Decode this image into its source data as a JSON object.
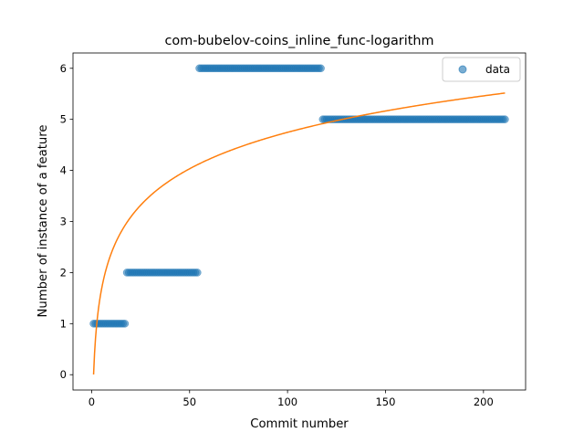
{
  "chart_data": {
    "type": "scatter",
    "title": "com-bubelov-coins_inline_func-logarithm",
    "xlabel": "Commit number",
    "ylabel": "Number of instance of a feature",
    "xlim": [
      -9.5,
      221.5
    ],
    "ylim": [
      -0.3,
      6.3
    ],
    "xticks": [
      0,
      50,
      100,
      150,
      200
    ],
    "yticks": [
      0,
      1,
      2,
      3,
      4,
      5,
      6
    ],
    "grid": false,
    "legend_position": "top-right",
    "series": [
      {
        "name": "data",
        "kind": "scatter",
        "color": "#1f77b4",
        "segments": [
          {
            "x_start": 1,
            "x_end": 17,
            "y": 1
          },
          {
            "x_start": 18,
            "x_end": 54,
            "y": 2
          },
          {
            "x_start": 55,
            "x_end": 117,
            "y": 6
          },
          {
            "x_start": 118,
            "x_end": 211,
            "y": 5
          }
        ]
      },
      {
        "name": "",
        "kind": "line",
        "color": "#ff7f0e",
        "function": "logarithm",
        "x_range": [
          1,
          211
        ],
        "fit_points": [
          {
            "x": 1,
            "y": 0
          },
          {
            "x": 20,
            "y": 3.1
          },
          {
            "x": 50,
            "y": 4.05
          },
          {
            "x": 100,
            "y": 4.7
          },
          {
            "x": 150,
            "y": 5.17
          },
          {
            "x": 211,
            "y": 5.53
          }
        ]
      }
    ]
  }
}
